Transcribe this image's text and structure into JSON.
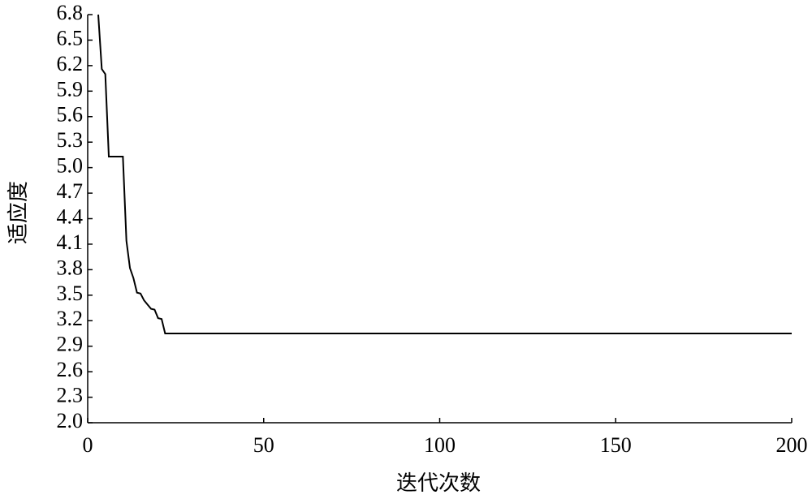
{
  "chart_data": {
    "type": "line",
    "x_label": "迭代次数",
    "y_label": "适应度",
    "x": [
      3,
      4,
      5,
      6,
      10,
      11,
      12,
      13,
      14,
      15,
      16,
      17,
      18,
      19,
      20,
      21,
      22,
      200
    ],
    "series": [
      {
        "color": "#000000",
        "values": [
          6.8,
          6.16,
          6.1,
          5.13,
          5.13,
          4.14,
          3.82,
          3.7,
          3.53,
          3.52,
          3.44,
          3.39,
          3.34,
          3.33,
          3.23,
          3.22,
          3.05,
          3.05
        ]
      }
    ],
    "xlim": [
      0,
      200
    ],
    "xticks": [
      0,
      50,
      100,
      150,
      200
    ],
    "ylim": [
      2,
      6.8
    ],
    "yticks": [
      {
        "value": 2,
        "label": "2.0"
      },
      2.3,
      2.6,
      2.9,
      3.2,
      3.5,
      3.8,
      4.1,
      4.4,
      4.7,
      {
        "value": 5,
        "label": "5.0"
      },
      5.3,
      5.6,
      5.9,
      6.2,
      6.5,
      6.8
    ]
  }
}
